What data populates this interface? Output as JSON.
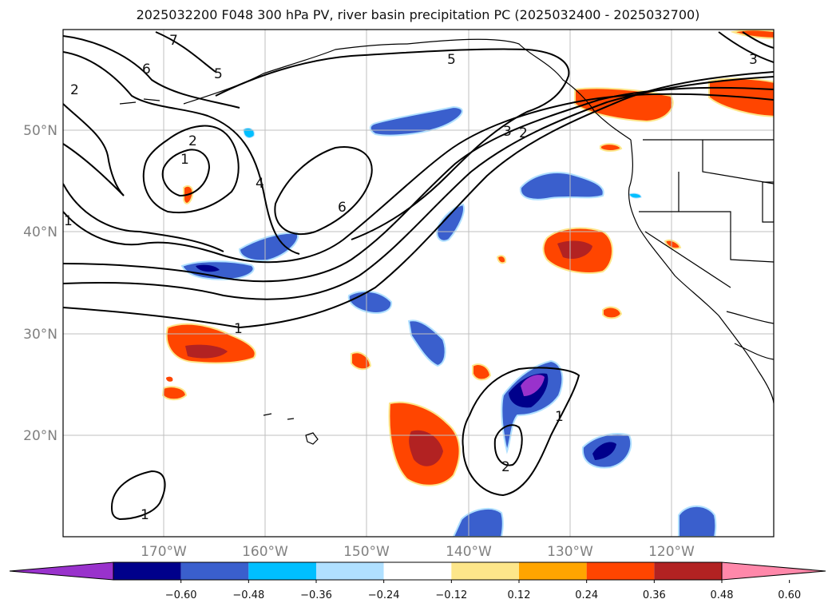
{
  "title": "2025032200 F048 300 hPa PV, river basin precipitation PC (2025032400 - 2025032700)",
  "lat_labels": [
    "50°N",
    "40°N",
    "30°N",
    "20°N"
  ],
  "lon_labels": [
    "170°W",
    "160°W",
    "150°W",
    "140°W",
    "130°W",
    "120°W"
  ],
  "contour_labels": [
    "7",
    "6",
    "5",
    "5",
    "2",
    "2",
    "1",
    "4",
    "6",
    "3",
    "2",
    "3",
    "1",
    "1",
    "1",
    "2",
    "1"
  ],
  "colorbar": {
    "ticks": [
      "−0.60",
      "−0.48",
      "−0.36",
      "−0.24",
      "−0.12",
      "0.12",
      "0.24",
      "0.36",
      "0.48",
      "0.60"
    ],
    "colors": [
      "#9932cc",
      "#00008b",
      "#3a5fcd",
      "#00bfff",
      "#b0e0ff",
      "#ffffff",
      "#fde68a",
      "#ffa500",
      "#ff4500",
      "#b22222",
      "#ff88aa"
    ]
  }
}
